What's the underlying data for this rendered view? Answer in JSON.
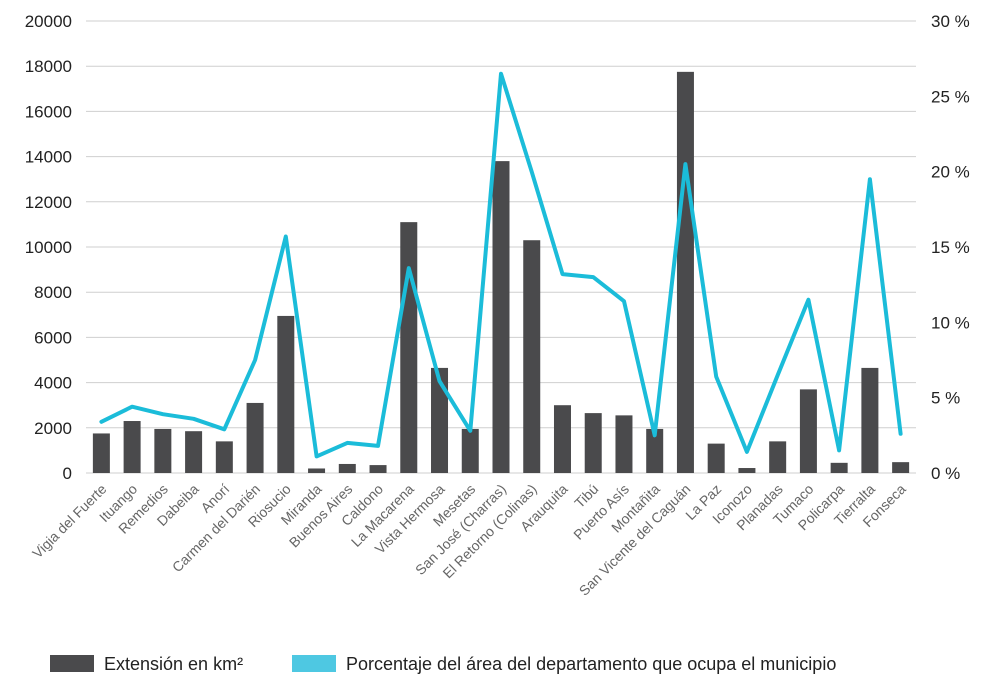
{
  "chart_data": {
    "type": "bar",
    "categories": [
      "Vigia del Fuerte",
      "Ituango",
      "Remedios",
      "Dabeiba",
      "Anorí",
      "Carmen del Darién",
      "Riosucio",
      "Miranda",
      "Buenos Aires",
      "Caldono",
      "La Macarena",
      "Vista Hermosa",
      "Mesetas",
      "San José (Charras)",
      "El Retorno (Colinas)",
      "Arauquita",
      "Tibú",
      "Puerto Asís",
      "Montañita",
      "San Vicente del Caguán",
      "La Paz",
      "Iconozo",
      "Planadas",
      "Tumaco",
      "Policarpa",
      "Tierralta",
      "Fonseca"
    ],
    "series": [
      {
        "name": "Extensión en km²",
        "type": "bar",
        "axis": "left",
        "color": "#4a4a4c",
        "values": [
          1750,
          2300,
          1950,
          1850,
          1400,
          3100,
          6950,
          200,
          400,
          350,
          11100,
          4650,
          1950,
          13800,
          10300,
          3000,
          2650,
          2550,
          1950,
          17750,
          1300,
          220,
          1400,
          3700,
          450,
          4650,
          480
        ]
      },
      {
        "name": "Porcentaje del área del departamento que ocupa el municipio",
        "type": "line",
        "axis": "right",
        "color": "#1bbcd9",
        "values": [
          3.4,
          4.4,
          3.9,
          3.6,
          2.9,
          7.5,
          15.7,
          1.1,
          2.0,
          1.8,
          13.6,
          6.1,
          2.8,
          26.5,
          20.0,
          13.2,
          13.0,
          11.4,
          2.5,
          20.5,
          6.4,
          1.4,
          6.5,
          11.5,
          1.5,
          19.5,
          2.6
        ]
      }
    ],
    "y_left": {
      "range": [
        0,
        20000
      ],
      "ticks": [
        0,
        2000,
        4000,
        6000,
        8000,
        10000,
        12000,
        14000,
        16000,
        18000,
        20000
      ],
      "tick_labels": [
        "0",
        "2000",
        "4000",
        "6000",
        "8000",
        "10000",
        "12000",
        "14000",
        "16000",
        "18000",
        "20000"
      ]
    },
    "y_right": {
      "range": [
        0,
        30
      ],
      "ticks": [
        0,
        5,
        10,
        15,
        20,
        25,
        30
      ],
      "tick_labels": [
        "0 %",
        "5 %",
        "10 %",
        "15 %",
        "20 %",
        "25 %",
        "30 %"
      ]
    },
    "grid": true,
    "legend_position": "bottom"
  }
}
